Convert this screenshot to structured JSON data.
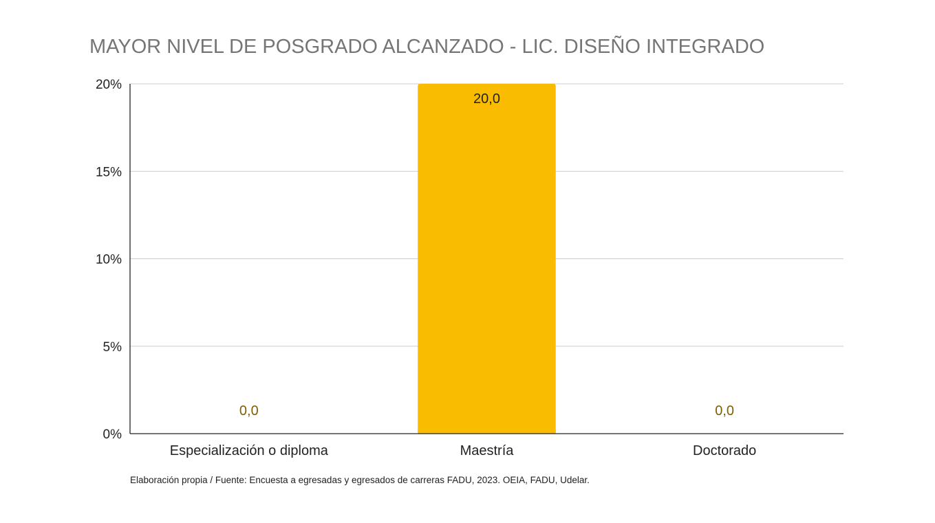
{
  "chart_data": {
    "type": "bar",
    "title": "MAYOR NIVEL DE POSGRADO ALCANZADO - LIC. DISEÑO INTEGRADO",
    "categories": [
      "Especialización o diploma",
      "Maestría",
      "Doctorado"
    ],
    "values": [
      0.0,
      20.0,
      0.0
    ],
    "data_labels": [
      "0,0",
      "20,0",
      "0,0"
    ],
    "ylim": [
      0,
      20
    ],
    "yticks": [
      0,
      5,
      10,
      15,
      20
    ],
    "ytick_labels": [
      "0%",
      "5%",
      "10%",
      "15%",
      "20%"
    ],
    "xlabel": "",
    "ylabel": "",
    "grid": true,
    "legend": "none",
    "bar_color": "#F9BC00",
    "label_color_inside": "#222222",
    "label_color_outside": "#7F6000",
    "gridline_color": "#CCCCCC"
  },
  "source_note": "Elaboración propia / Fuente: Encuesta a egresadas y egresados de carreras FADU, 2023. OEIA, FADU, Udelar."
}
